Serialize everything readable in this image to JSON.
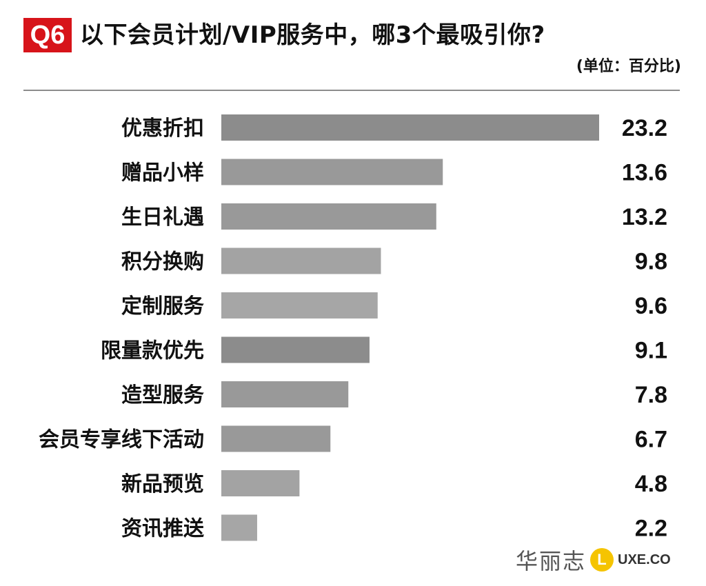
{
  "header": {
    "badge": "Q6",
    "title": "以下会员计划/VIP服务中，哪3个最吸引你?",
    "unit": "(单位：百分比)"
  },
  "chart_data": {
    "type": "bar",
    "orientation": "horizontal",
    "categories": [
      "优惠折扣",
      "赠品小样",
      "生日礼遇",
      "积分换购",
      "定制服务",
      "限量款优先",
      "造型服务",
      "会员专享线下活动",
      "新品预览",
      "资讯推送"
    ],
    "values": [
      23.2,
      13.6,
      13.2,
      9.8,
      9.6,
      9.1,
      7.8,
      6.7,
      4.8,
      2.2
    ],
    "value_labels": [
      "23.2",
      "13.6",
      "13.2",
      "9.8",
      "9.6",
      "9.1",
      "7.8",
      "6.7",
      "4.8",
      "2.2"
    ],
    "xlim": [
      0,
      23.2
    ],
    "bar_colors": [
      "#8c8c8c",
      "#999999",
      "#999999",
      "#a3a3a3",
      "#a6a6a6",
      "#8c8c8c",
      "#999999",
      "#999999",
      "#a3a3a3",
      "#a6a6a6"
    ],
    "grid": false
  },
  "brand": {
    "name_cn": "华丽志",
    "logo_letter": "L",
    "logo_text": "UXE.CO",
    "accent": "#f5c400"
  },
  "colors": {
    "badge": "#d7141a",
    "divider": "#8c8c8c"
  }
}
